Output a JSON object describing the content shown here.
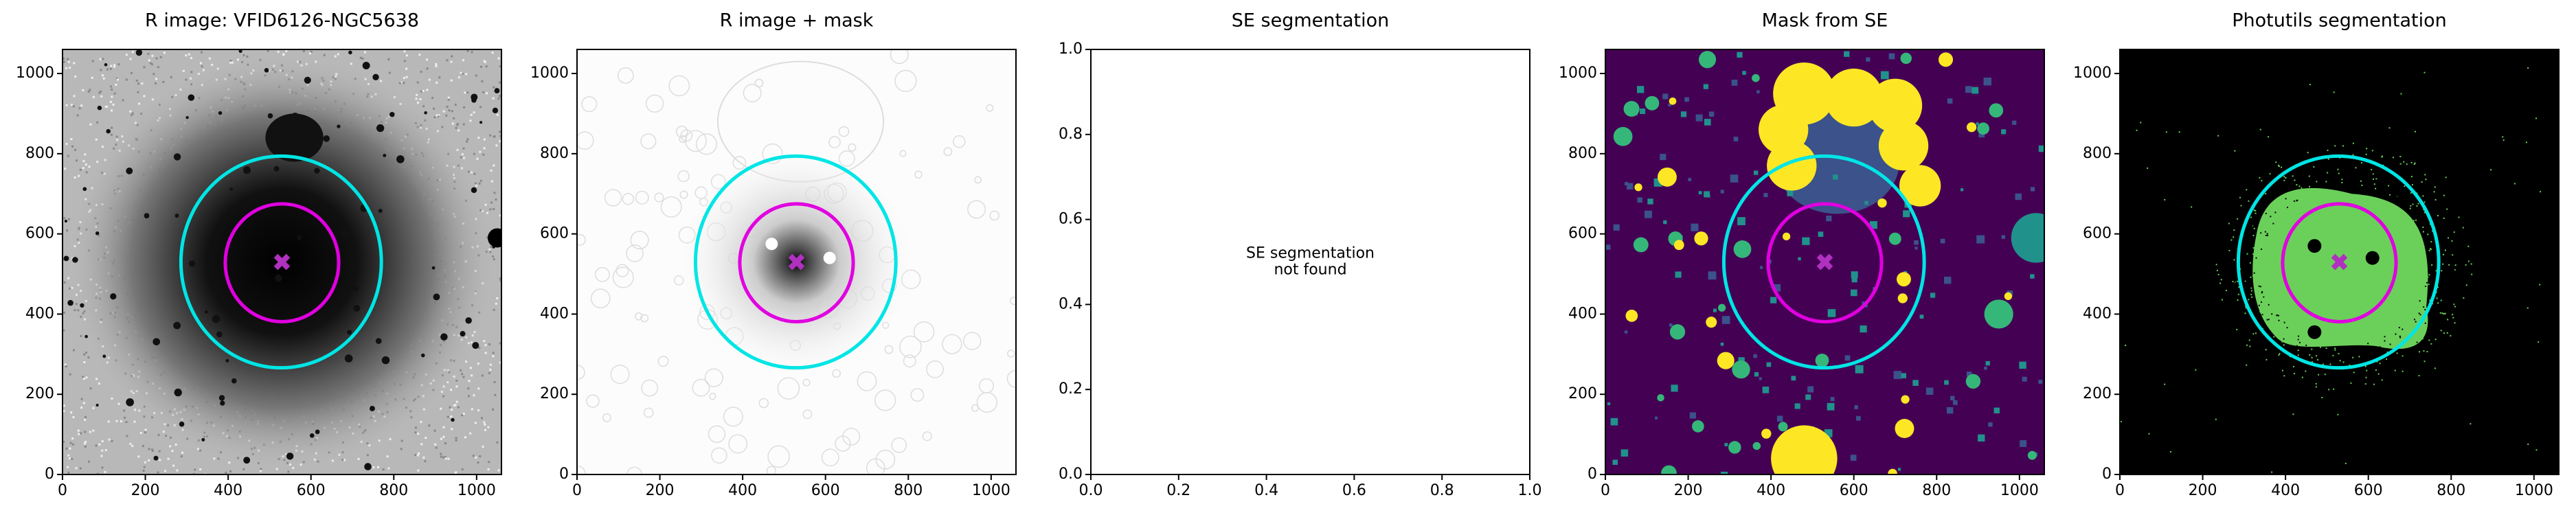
{
  "chart_data": [
    {
      "type": "image",
      "title": "R image: VFID6126-NGC5638",
      "cmap": "gray",
      "xlim": [
        0,
        1060
      ],
      "ylim": [
        0,
        1060
      ],
      "xticks": [
        0,
        200,
        400,
        600,
        800,
        1000
      ],
      "yticks": [
        0,
        200,
        400,
        600,
        800,
        1000
      ],
      "ellipses": [
        {
          "color": "#00e5e5",
          "center": [
            528,
            530
          ],
          "semi_axes": [
            242,
            264
          ]
        },
        {
          "color": "#e000e0",
          "center": [
            530,
            528
          ],
          "semi_axes": [
            137,
            147
          ]
        }
      ],
      "marker": {
        "x": 530,
        "y": 530,
        "color": "#b030c0"
      }
    },
    {
      "type": "image",
      "title": "R image + mask",
      "cmap": "gray_r",
      "xlim": [
        0,
        1060
      ],
      "ylim": [
        0,
        1060
      ],
      "xticks": [
        0,
        200,
        400,
        600,
        800,
        1000
      ],
      "yticks": [
        0,
        200,
        400,
        600,
        800,
        1000
      ],
      "ellipses": [
        {
          "color": "#00e5e5",
          "center": [
            528,
            530
          ],
          "semi_axes": [
            242,
            264
          ]
        },
        {
          "color": "#e000e0",
          "center": [
            530,
            528
          ],
          "semi_axes": [
            137,
            147
          ]
        }
      ],
      "marker": {
        "x": 530,
        "y": 530,
        "color": "#b030c0"
      }
    },
    {
      "type": "empty",
      "title": "SE segmentation",
      "xlim": [
        0,
        1
      ],
      "ylim": [
        0,
        1
      ],
      "xticks": [
        {
          "value": 0,
          "label": "0.0"
        },
        0.2,
        0.4,
        0.6,
        0.8,
        {
          "value": 1,
          "label": "1.0"
        }
      ],
      "yticks": [
        {
          "value": 0,
          "label": "0.0"
        },
        0.2,
        0.4,
        0.6,
        0.8,
        {
          "value": 1,
          "label": "1.0"
        }
      ],
      "annotation": [
        "SE segmentation",
        "not found"
      ]
    },
    {
      "type": "image",
      "title": "Mask from SE",
      "cmap": "viridis",
      "xlim": [
        0,
        1060
      ],
      "ylim": [
        0,
        1060
      ],
      "xticks": [
        0,
        200,
        400,
        600,
        800,
        1000
      ],
      "yticks": [
        0,
        200,
        400,
        600,
        800,
        1000
      ],
      "ellipses": [
        {
          "color": "#00e5e5",
          "center": [
            528,
            530
          ],
          "semi_axes": [
            242,
            264
          ]
        },
        {
          "color": "#e000e0",
          "center": [
            530,
            528
          ],
          "semi_axes": [
            137,
            147
          ]
        }
      ],
      "marker": {
        "x": 530,
        "y": 530,
        "color": "#b030c0"
      }
    },
    {
      "type": "image",
      "title": "Photutils segmentation",
      "cmap": "segm",
      "xlim": [
        0,
        1060
      ],
      "ylim": [
        0,
        1060
      ],
      "xticks": [
        0,
        200,
        400,
        600,
        800,
        1000
      ],
      "yticks": [
        0,
        200,
        400,
        600,
        800,
        1000
      ],
      "ellipses": [
        {
          "color": "#00e5e5",
          "center": [
            528,
            530
          ],
          "semi_axes": [
            242,
            264
          ]
        },
        {
          "color": "#e000e0",
          "center": [
            530,
            528
          ],
          "semi_axes": [
            137,
            147
          ]
        }
      ],
      "marker": {
        "x": 530,
        "y": 530,
        "color": "#b030c0"
      }
    }
  ]
}
